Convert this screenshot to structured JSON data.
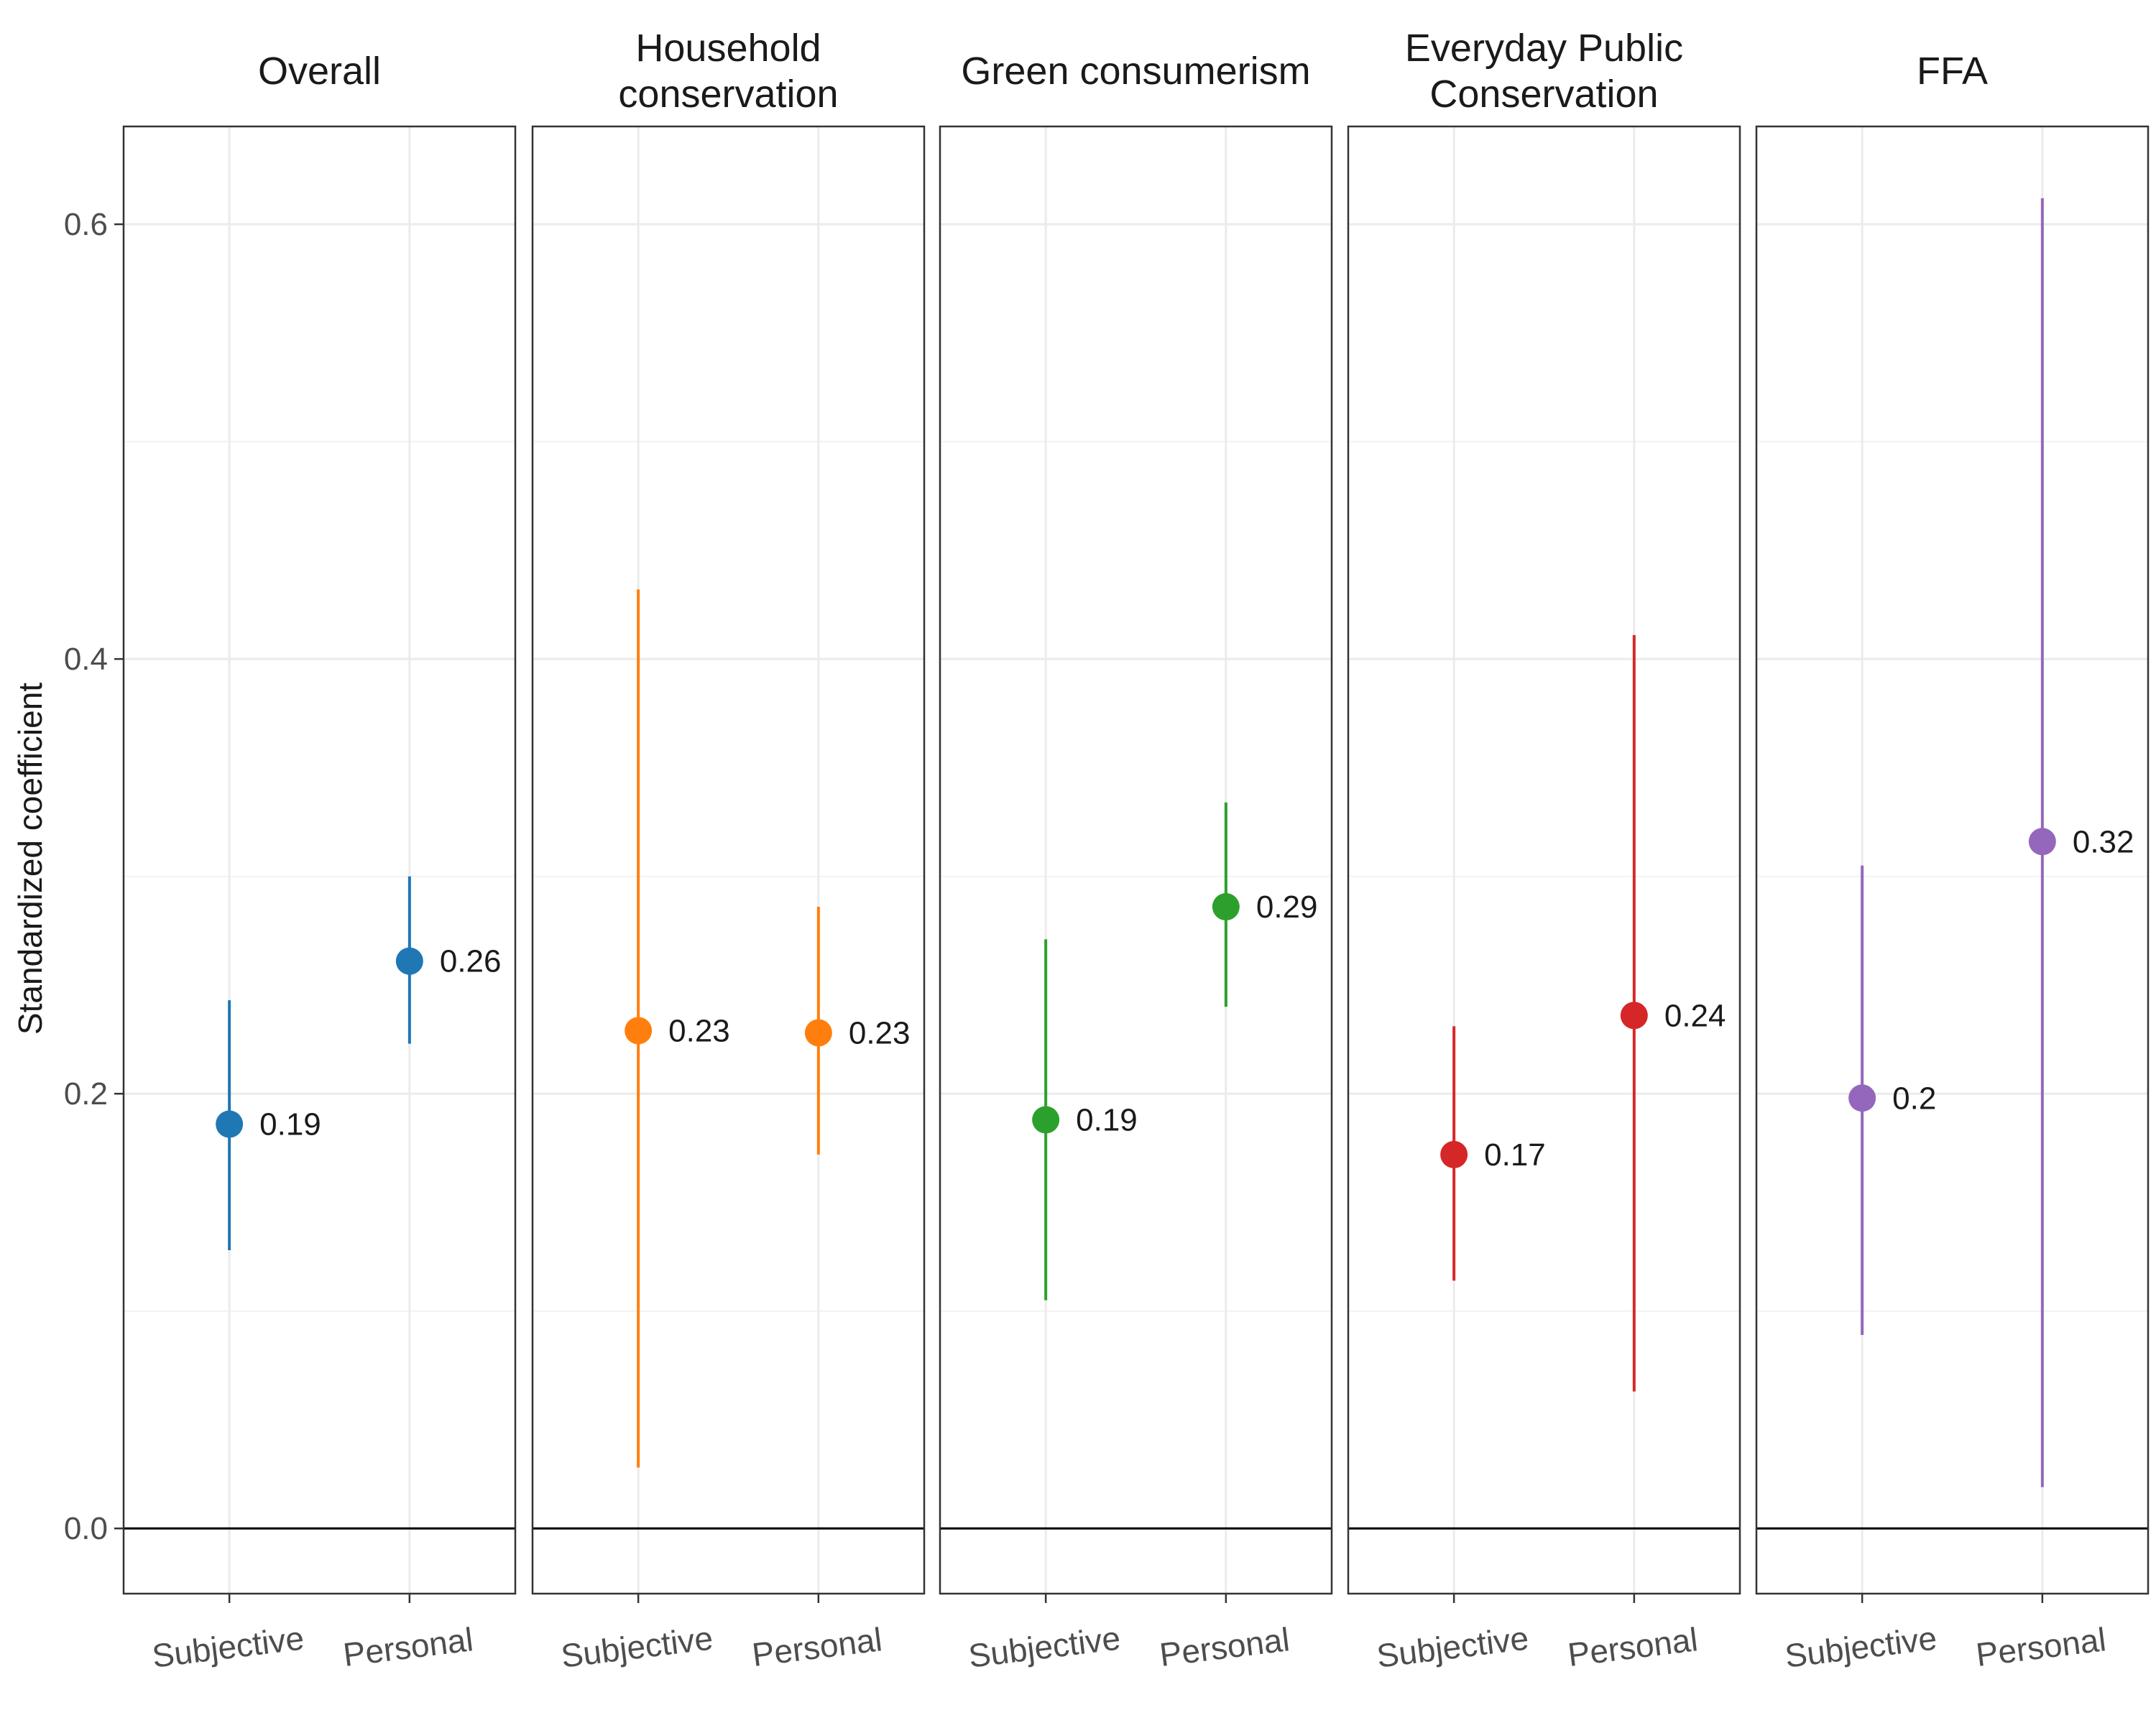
{
  "chart_data": {
    "type": "scatter",
    "subtype": "faceted point-range (coefficient plot)",
    "ylabel": "Standardized coefficient",
    "xlabel": "",
    "ylim": [
      -0.03,
      0.645
    ],
    "yticks": [
      0.0,
      0.2,
      0.4,
      0.6
    ],
    "ytick_labels": [
      "0.0",
      "0.2",
      "0.4",
      "0.6"
    ],
    "reference_line": 0.0,
    "grid": true,
    "categories": [
      "Subjective",
      "Personal"
    ],
    "panels": [
      {
        "title_lines": [
          "Overall"
        ],
        "color": "#1f77b4",
        "points": [
          {
            "category": "Subjective",
            "estimate": 0.186,
            "lower": 0.128,
            "upper": 0.243,
            "label": "0.19"
          },
          {
            "category": "Personal",
            "estimate": 0.261,
            "lower": 0.223,
            "upper": 0.3,
            "label": "0.26"
          }
        ]
      },
      {
        "title_lines": [
          "Household",
          "conservation"
        ],
        "color": "#ff7f0e",
        "points": [
          {
            "category": "Subjective",
            "estimate": 0.229,
            "lower": 0.028,
            "upper": 0.432,
            "label": "0.23"
          },
          {
            "category": "Personal",
            "estimate": 0.228,
            "lower": 0.172,
            "upper": 0.286,
            "label": "0.23"
          }
        ]
      },
      {
        "title_lines": [
          "Green consumerism"
        ],
        "color": "#2ca02c",
        "points": [
          {
            "category": "Subjective",
            "estimate": 0.188,
            "lower": 0.105,
            "upper": 0.271,
            "label": "0.19"
          },
          {
            "category": "Personal",
            "estimate": 0.286,
            "lower": 0.24,
            "upper": 0.334,
            "label": "0.29"
          }
        ]
      },
      {
        "title_lines": [
          "Everyday Public",
          "Conservation"
        ],
        "color": "#d62728",
        "points": [
          {
            "category": "Subjective",
            "estimate": 0.172,
            "lower": 0.114,
            "upper": 0.231,
            "label": "0.17"
          },
          {
            "category": "Personal",
            "estimate": 0.236,
            "lower": 0.063,
            "upper": 0.411,
            "label": "0.24"
          }
        ]
      },
      {
        "title_lines": [
          "FFA"
        ],
        "color": "#9467bd",
        "points": [
          {
            "category": "Subjective",
            "estimate": 0.198,
            "lower": 0.089,
            "upper": 0.305,
            "label": "0.2"
          },
          {
            "category": "Personal",
            "estimate": 0.316,
            "lower": 0.019,
            "upper": 0.612,
            "label": "0.32"
          }
        ]
      }
    ]
  }
}
